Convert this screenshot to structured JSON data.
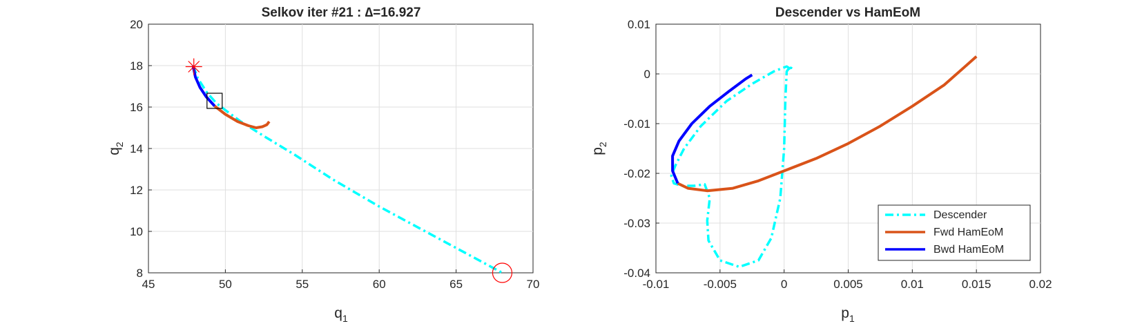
{
  "colors": {
    "cyan": "#00ffff",
    "orange": "#d95319",
    "blue": "#0000ff",
    "red": "#ff0000",
    "black": "#000000"
  },
  "chart_data": [
    {
      "type": "line",
      "title": "Selkov iter #21 : ∆=16.927",
      "xlabel": "q",
      "xlabel_sub": "1",
      "ylabel": "q",
      "ylabel_sub": "2",
      "xlim": [
        45,
        70
      ],
      "ylim": [
        8,
        20
      ],
      "xticks": [
        "45",
        "50",
        "55",
        "60",
        "65",
        "70"
      ],
      "yticks": [
        "8",
        "10",
        "12",
        "14",
        "16",
        "18",
        "20"
      ],
      "grid": true,
      "series": [
        {
          "style": "dashdot",
          "color": "#00ffff",
          "x": [
            47.9,
            48.2,
            48.8,
            49.4,
            50.0,
            51.0,
            52.5,
            54.5,
            57.0,
            60.0,
            63.0,
            66.0,
            68.0
          ],
          "y": [
            18.0,
            17.4,
            16.7,
            16.2,
            15.85,
            15.3,
            14.6,
            13.7,
            12.5,
            11.2,
            10.0,
            8.8,
            8.0
          ]
        },
        {
          "style": "solid",
          "color": "#d95319",
          "x": [
            49.3,
            50.0,
            50.8,
            51.5,
            52.0,
            52.4,
            52.7,
            52.85
          ],
          "y": [
            16.05,
            15.65,
            15.3,
            15.1,
            15.0,
            15.05,
            15.15,
            15.3
          ]
        },
        {
          "style": "solid",
          "color": "#0000ff",
          "x": [
            47.9,
            48.05,
            48.35,
            48.75,
            49.3
          ],
          "y": [
            18.0,
            17.45,
            16.95,
            16.5,
            16.05
          ]
        }
      ],
      "markers": [
        {
          "kind": "star",
          "color": "#ff0000",
          "x": 47.95,
          "y": 17.95
        },
        {
          "kind": "square",
          "color": "#000000",
          "x": 49.3,
          "y": 16.3
        },
        {
          "kind": "circle",
          "color": "#ff0000",
          "x": 68.0,
          "y": 8.0
        }
      ]
    },
    {
      "type": "line",
      "title": "Descender vs HamEoM",
      "xlabel": "p",
      "xlabel_sub": "1",
      "ylabel": "p",
      "ylabel_sub": "2",
      "xlim": [
        -0.01,
        0.02
      ],
      "ylim": [
        -0.04,
        0.01
      ],
      "xticks": [
        "-0.01",
        "-0.005",
        "0",
        "0.005",
        "0.01",
        "0.015",
        "0.02"
      ],
      "yticks": [
        "-0.04",
        "-0.03",
        "-0.02",
        "-0.01",
        "0",
        "0.01"
      ],
      "grid": true,
      "legend": {
        "position": "bottom-right",
        "entries": [
          {
            "label": "Descender",
            "color": "#00ffff",
            "style": "dashdot"
          },
          {
            "label": "Fwd HamEoM",
            "color": "#d95319",
            "style": "solid"
          },
          {
            "label": "Bwd HamEoM",
            "color": "#0000ff",
            "style": "solid"
          }
        ]
      },
      "series": [
        {
          "name": "Descender",
          "style": "dashdot",
          "color": "#00ffff",
          "x": [
            0.0005,
            0.0002,
            -0.0008,
            -0.0025,
            -0.0045,
            -0.0065,
            -0.0078,
            -0.0085,
            -0.0088,
            -0.0086,
            -0.008,
            -0.007,
            -0.0062,
            -0.0058,
            -0.006,
            -0.0059,
            -0.005,
            -0.0035,
            -0.002,
            -0.001,
            -0.0003,
            0.0,
            0.0001,
            0.0002,
            0.0004,
            0.0006,
            0.0005
          ],
          "y": [
            0.001,
            0.0015,
            0.0005,
            -0.002,
            -0.0055,
            -0.0105,
            -0.015,
            -0.0185,
            -0.0205,
            -0.022,
            -0.0225,
            -0.0225,
            -0.0222,
            -0.025,
            -0.0295,
            -0.0335,
            -0.0375,
            -0.0388,
            -0.0375,
            -0.033,
            -0.025,
            -0.015,
            -0.005,
            0.0005,
            0.0012,
            0.0015,
            0.001
          ]
        },
        {
          "name": "Fwd HamEoM",
          "style": "solid",
          "color": "#d95319",
          "x": [
            -0.0083,
            -0.0075,
            -0.006,
            -0.004,
            -0.002,
            0.0,
            0.0025,
            0.005,
            0.0075,
            0.01,
            0.0125,
            0.015
          ],
          "y": [
            -0.022,
            -0.023,
            -0.0235,
            -0.023,
            -0.0215,
            -0.0195,
            -0.017,
            -0.014,
            -0.0105,
            -0.0065,
            -0.0022,
            0.0035
          ]
        },
        {
          "name": "Bwd HamEoM",
          "style": "solid",
          "color": "#0000ff",
          "x": [
            -0.0083,
            -0.0087,
            -0.0087,
            -0.0082,
            -0.0072,
            -0.0058,
            -0.0043,
            -0.003,
            -0.0025
          ],
          "y": [
            -0.022,
            -0.0195,
            -0.0165,
            -0.0135,
            -0.01,
            -0.0065,
            -0.0035,
            -0.001,
            -0.0002
          ]
        }
      ]
    }
  ]
}
